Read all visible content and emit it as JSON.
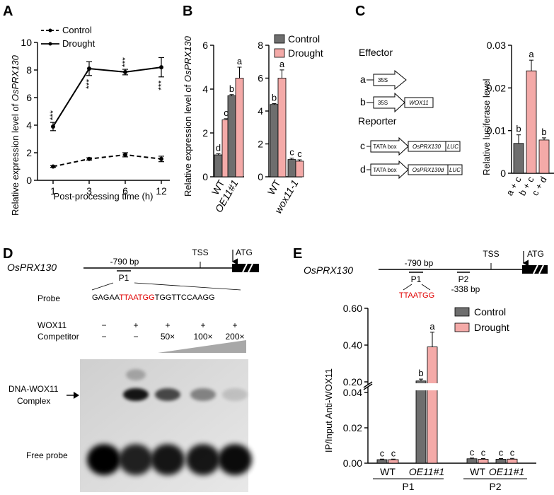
{
  "panels": {
    "A": "A",
    "B": "B",
    "C": "C",
    "D": "D",
    "E": "E"
  },
  "colors": {
    "control": "#6e6e6e",
    "drought": "#f4aaa8",
    "red_text": "#e00000"
  },
  "chart_data": [
    {
      "id": "A",
      "type": "line",
      "ylabel_plain": "Relative expression level of ",
      "ylabel_gene": "OsPRX130",
      "xlabel": "Post-processing time (h)",
      "x": [
        1,
        3,
        6,
        12
      ],
      "xticks": [
        "1",
        "3",
        "6",
        "12"
      ],
      "yticks": [
        "0",
        "2",
        "4",
        "6",
        "8",
        "10"
      ],
      "ylim": [
        0,
        10
      ],
      "legend_placement": "top-left",
      "series": [
        {
          "name": "Control",
          "style": "dashed",
          "values": [
            1.0,
            1.55,
            1.85,
            1.55
          ],
          "errors": [
            0.06,
            0.08,
            0.15,
            0.2
          ]
        },
        {
          "name": "Drought",
          "style": "solid",
          "values": [
            3.9,
            8.1,
            7.85,
            8.2
          ],
          "errors": [
            0.3,
            0.5,
            0.2,
            0.7
          ]
        }
      ],
      "annotations": [
        "***",
        "***",
        "***",
        "***"
      ]
    },
    {
      "id": "B1",
      "type": "bar",
      "ylabel_plain": "Relative expression level of ",
      "ylabel_gene": "OsPRX130",
      "categories": [
        "WT",
        "OE11#1"
      ],
      "yticks": [
        "0",
        "2",
        "4",
        "6"
      ],
      "ylim": [
        0,
        6
      ],
      "series": [
        {
          "name": "Control",
          "values": [
            1.0,
            3.7
          ],
          "errors": [
            0.05,
            0.05
          ],
          "letters": [
            "d",
            "b"
          ]
        },
        {
          "name": "Drought",
          "values": [
            2.6,
            4.5
          ],
          "errors": [
            0.05,
            0.5
          ],
          "letters": [
            "c",
            "a"
          ]
        }
      ]
    },
    {
      "id": "B2",
      "type": "bar",
      "categories": [
        "WT",
        "wox11-1"
      ],
      "yticks": [
        "0",
        "2",
        "4",
        "6",
        "8"
      ],
      "ylim": [
        0,
        8
      ],
      "legend_placement": "top-right",
      "series": [
        {
          "name": "Control",
          "values": [
            4.4,
            1.05
          ],
          "errors": [
            0.05,
            0.08
          ],
          "letters": [
            "b",
            "c"
          ]
        },
        {
          "name": "Drought",
          "values": [
            6.0,
            0.95
          ],
          "errors": [
            0.5,
            0.08
          ],
          "letters": [
            "a",
            "c"
          ]
        }
      ]
    },
    {
      "id": "C",
      "type": "bar",
      "ylabel": "Relative luciferase level",
      "categories": [
        "a + c",
        "b + c",
        "c + d"
      ],
      "yticks": [
        "0",
        "0.01",
        "0.02",
        "0.03"
      ],
      "ylim": [
        0,
        0.03
      ],
      "values": [
        0.007,
        0.024,
        0.0078
      ],
      "errors": [
        0.002,
        0.0025,
        0.0005
      ],
      "letters": [
        "b",
        "a",
        "b"
      ],
      "bar_colors": [
        "#6e6e6e",
        "#f4aaa8",
        "#f4aaa8"
      ]
    },
    {
      "id": "E",
      "type": "bar",
      "ylabel": "IP/Input Anti-WOX11",
      "categories": [
        "WT",
        "OE11#1",
        "WT",
        "OE11#1"
      ],
      "groups": [
        "P1",
        "P2"
      ],
      "yticks_low": [
        "0.00",
        "0.02",
        "0.04"
      ],
      "yticks_high": [
        "0.20",
        "0.40",
        "0.60"
      ],
      "axis_break": [
        0.045,
        0.19
      ],
      "legend_placement": "top-right",
      "series": [
        {
          "name": "Control",
          "values": [
            0.002,
            0.205,
            0.0025,
            0.0022
          ],
          "errors": [
            0.0003,
            0.01,
            0.0004,
            0.0004
          ],
          "letters": [
            "c",
            "b",
            "c",
            "c"
          ]
        },
        {
          "name": "Drought",
          "values": [
            0.002,
            0.39,
            0.0022,
            0.0023
          ],
          "errors": [
            0.0003,
            0.08,
            0.0004,
            0.0004
          ],
          "letters": [
            "c",
            "a",
            "c",
            "c"
          ]
        }
      ]
    }
  ],
  "panel_c": {
    "effector": "Effector",
    "reporter": "Reporter",
    "rows": [
      {
        "tag": "a",
        "promoter": "35S",
        "gene": "",
        "luc": ""
      },
      {
        "tag": "b",
        "promoter": "35S",
        "gene": "WOX11",
        "luc": ""
      },
      {
        "tag": "c",
        "promoter": "TATA box",
        "gene": "OsPRX130",
        "luc": "LUC"
      },
      {
        "tag": "d",
        "promoter": "TATA box",
        "gene": "OsPRX130d",
        "luc": "LUC"
      }
    ]
  },
  "panel_d": {
    "gene": "OsPRX130",
    "pos": "-790 bp",
    "tss": "TSS",
    "atg": "ATG",
    "probe_label": "P1",
    "probe": "Probe",
    "probe_seq_pre": "GAGAA",
    "probe_seq_red": "TTAATGG",
    "probe_seq_post": "TGGTTCCAAGG",
    "wox11": "WOX11",
    "competitor": "Competitor",
    "wox11_marks": [
      "−",
      "+",
      "+",
      "+",
      "+"
    ],
    "competitor_marks": [
      "−",
      "−",
      "50×",
      "100×",
      "200×"
    ],
    "complex_label_1": "DNA-WOX11",
    "complex_label_2": "Complex",
    "free_probe": "Free probe"
  },
  "panel_e_map": {
    "gene": "OsPRX130",
    "pos": "-790 bp",
    "p1": "P1",
    "p1_seq": "TTAATGG",
    "tss": "TSS",
    "atg": "ATG",
    "p2": "P2",
    "p2_pos": "-338 bp"
  }
}
